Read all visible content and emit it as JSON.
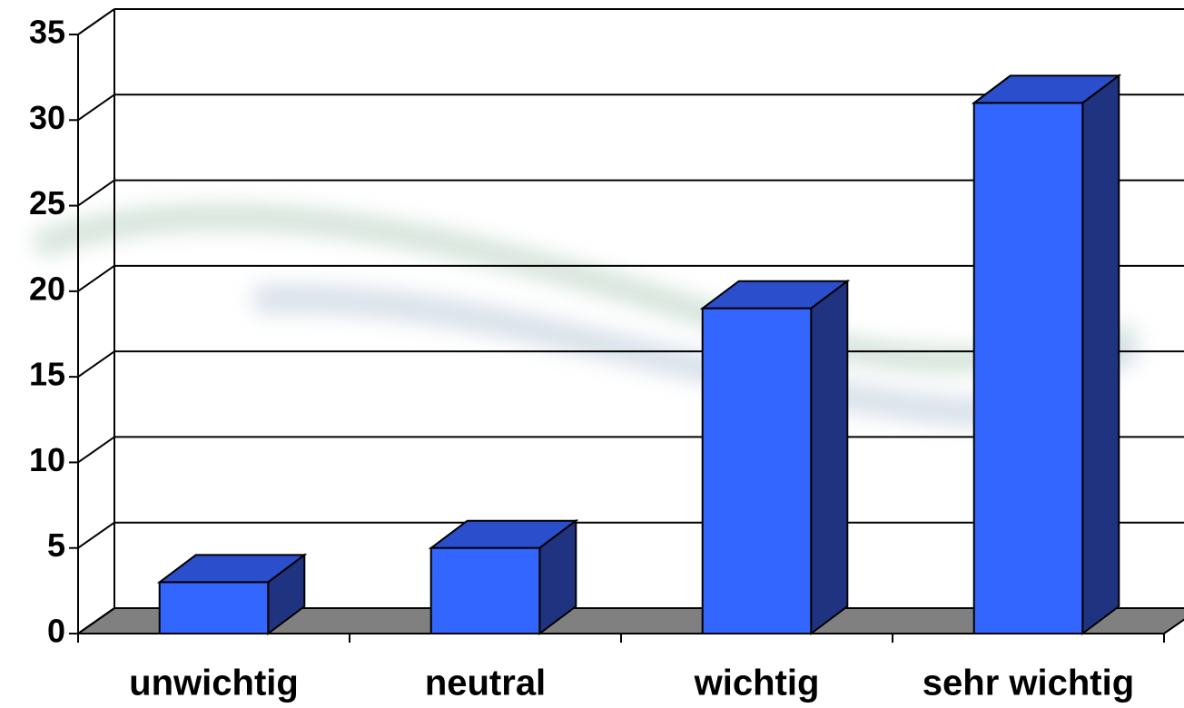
{
  "chart_data": {
    "type": "bar",
    "categories": [
      "unwichtig",
      "neutral",
      "wichtig",
      "sehr wichtig"
    ],
    "values": [
      3,
      5,
      19,
      31
    ],
    "color": "#3366ff",
    "ylim": [
      0,
      35
    ],
    "yticks": [
      0,
      5,
      10,
      15,
      20,
      25,
      30,
      35
    ],
    "grid": true
  }
}
